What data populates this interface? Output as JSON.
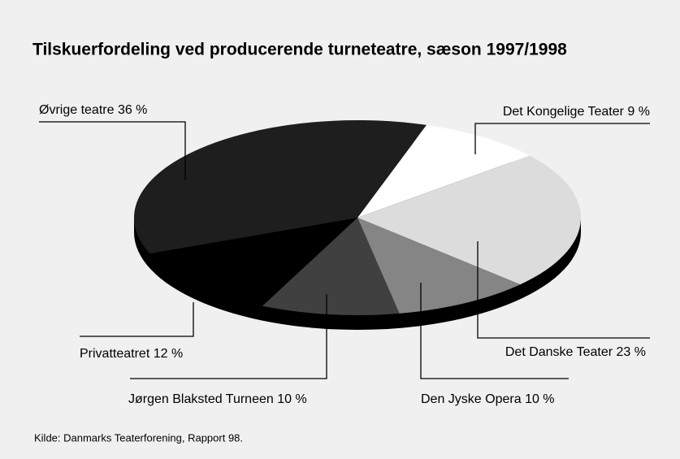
{
  "chart_data": {
    "type": "pie",
    "title": "Tilskuerfordeling ved producerende turneteatre, sæson 1997/1998",
    "categories": [
      "Det Kongelige Teater",
      "Det Danske Teater",
      "Den Jyske Opera",
      "Jørgen Blaksted Turneen",
      "Privatteatret",
      "Øvrige teatre"
    ],
    "values": [
      9,
      23,
      10,
      10,
      12,
      36
    ],
    "value_labels": [
      "9 %",
      "23 %",
      "10 %",
      "10 %",
      "12 %",
      "36 %"
    ],
    "colors": [
      "#ffffff",
      "#dcdcdc",
      "#858585",
      "#404040",
      "#000000",
      "#1e1e1e"
    ],
    "source": "Kilde: Danmarks Teaterforening, Rapport 98."
  }
}
